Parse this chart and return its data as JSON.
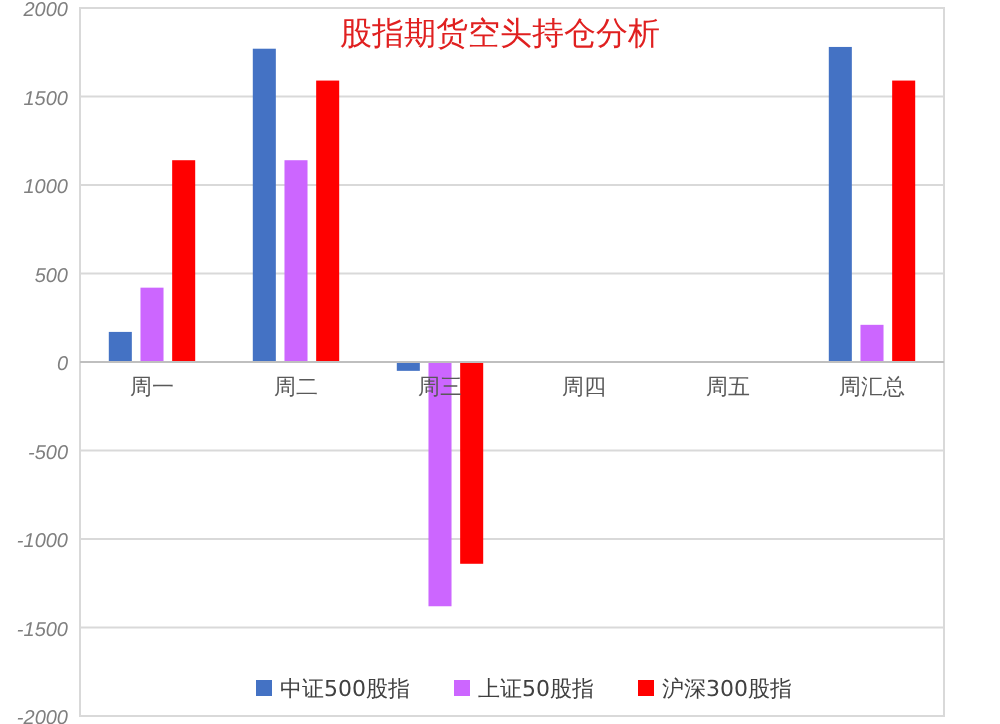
{
  "chart_data": {
    "type": "bar",
    "title": "股指期货空头持仓分析",
    "categories": [
      "周一",
      "周二",
      "周三",
      "周四",
      "周五",
      "周汇总"
    ],
    "series": [
      {
        "name": "中证500股指",
        "color": "#4472c4",
        "values": [
          170,
          1770,
          -50,
          0,
          0,
          1780
        ]
      },
      {
        "name": "上证50股指",
        "color": "#cc66ff",
        "values": [
          420,
          1140,
          -1380,
          0,
          0,
          210
        ]
      },
      {
        "name": "沪深300股指",
        "color": "#ff0000",
        "values": [
          1140,
          1590,
          -1140,
          0,
          0,
          1590
        ]
      }
    ],
    "ylim": [
      -2000,
      2000
    ],
    "yticks": [
      -2000,
      -1500,
      -1000,
      -500,
      0,
      500,
      1000,
      1500,
      2000
    ],
    "grid": "y",
    "legend": "bottom"
  }
}
